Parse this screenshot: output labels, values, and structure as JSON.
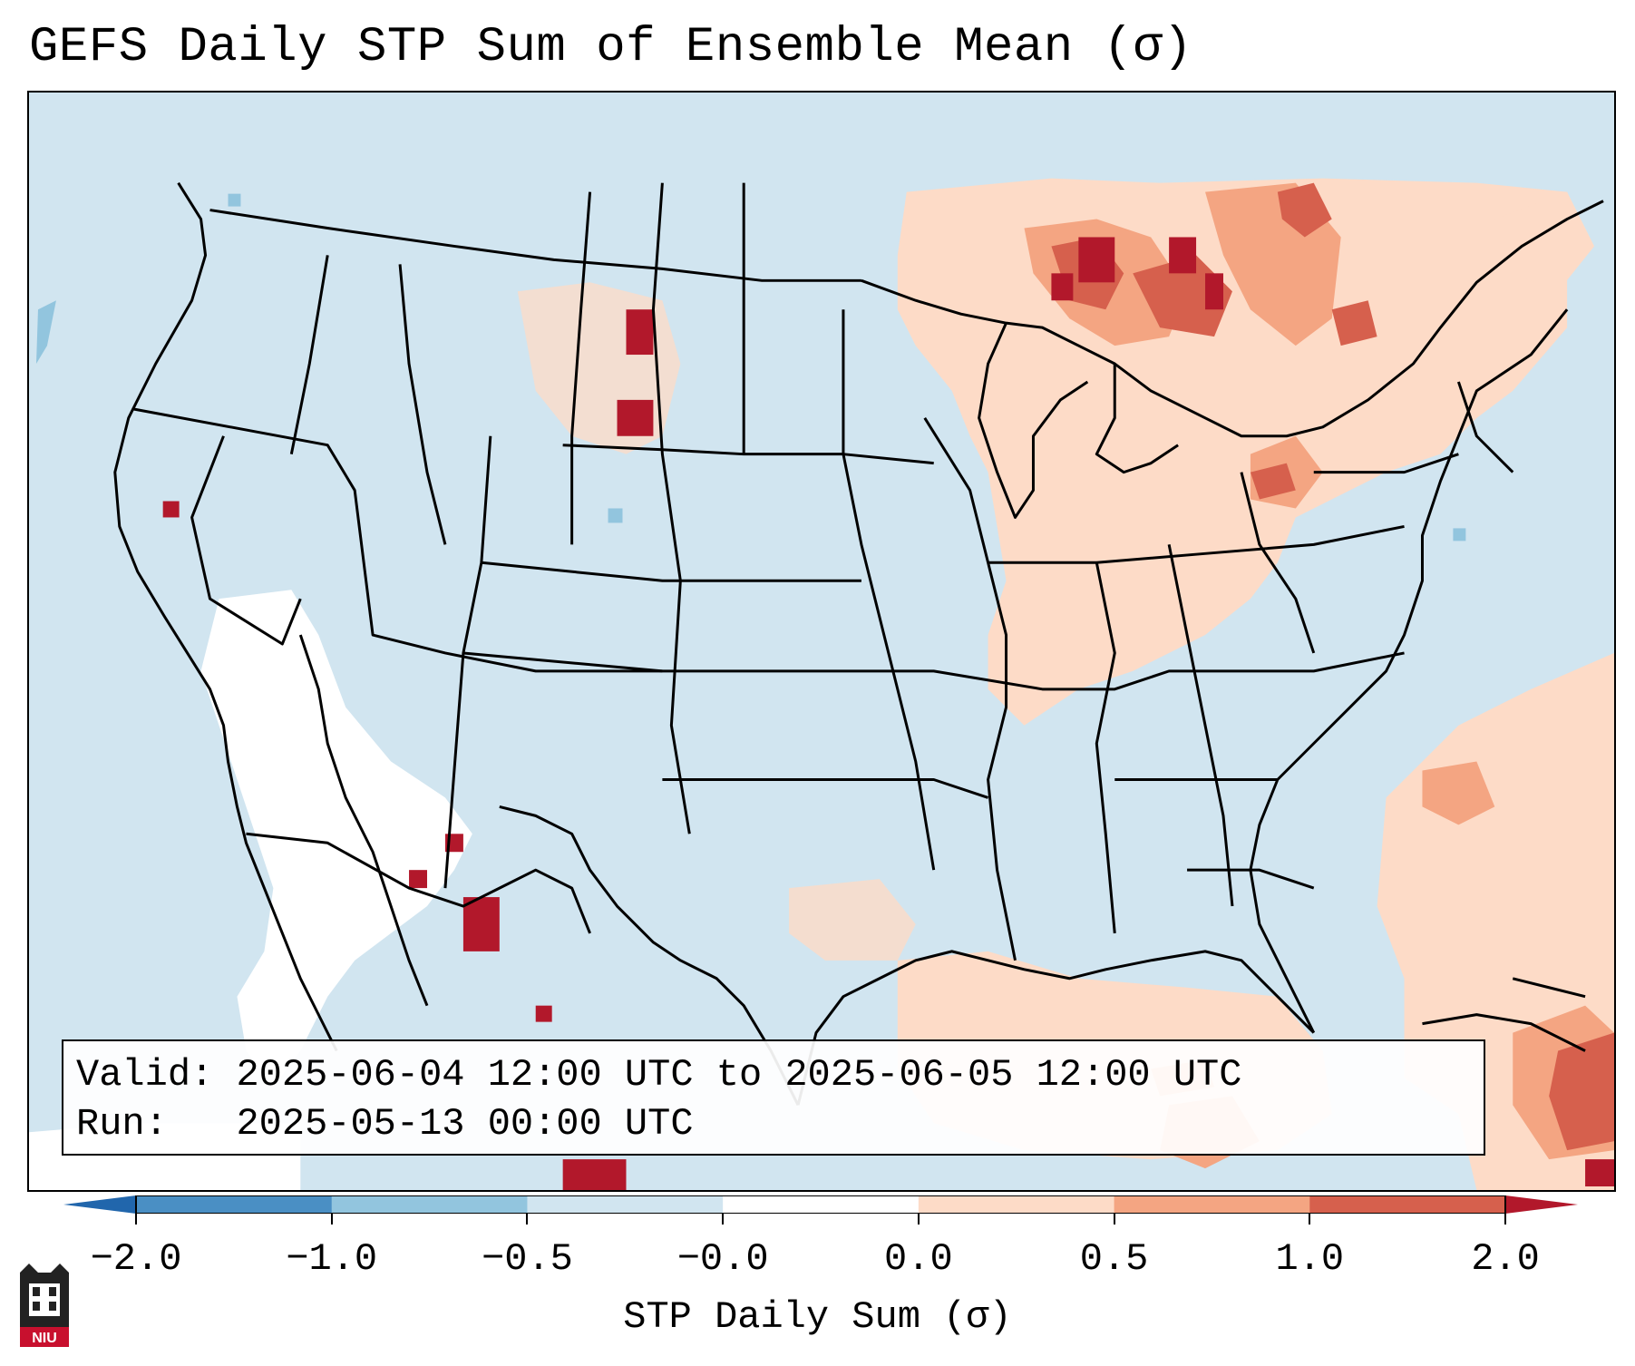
{
  "title": "GEFS Daily STP Sum of Ensemble Mean (σ)",
  "info": {
    "valid_label": "Valid:",
    "valid_value": "2025-06-04 12:00 UTC to 2025-06-05 12:00 UTC",
    "run_label": "Run:",
    "run_value": "2025-05-13 00:00 UTC"
  },
  "colorbar": {
    "label": "STP Daily Sum (σ)",
    "ticks": [
      "−2.0",
      "−1.0",
      "−0.5",
      "−0.0",
      "0.0",
      "0.5",
      "1.0",
      "2.0"
    ],
    "bins": [
      {
        "range": "-2.0 to -1.0",
        "color": "#4a8fc4"
      },
      {
        "range": "-1.0 to -0.5",
        "color": "#92c5de"
      },
      {
        "range": "-0.5 to -0.0",
        "color": "#d1e5f0"
      },
      {
        "range": "-0.0 to 0.0",
        "color": "#ffffff"
      },
      {
        "range": "0.0 to 0.5",
        "color": "#fddbc7"
      },
      {
        "range": "0.5 to 1.0",
        "color": "#f4a582"
      },
      {
        "range": "1.0 to 2.0",
        "color": "#d6604d"
      }
    ],
    "under_color": "#2166ac",
    "over_color": "#b2182b"
  },
  "logo": {
    "text": "NIU",
    "color": "#c8102e"
  }
}
